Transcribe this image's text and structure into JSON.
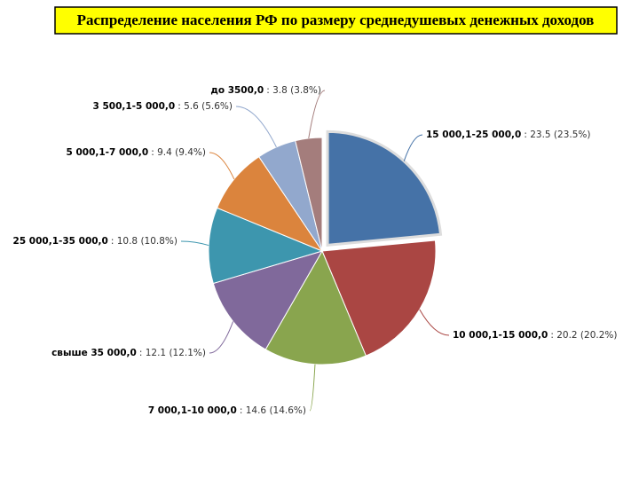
{
  "chart_data": {
    "type": "pie",
    "title": "Распределение населения РФ по размеру среднедушевых денежных доходов",
    "categories": [
      "15 000,1-25 000,0",
      "10 000,1-15 000,0",
      "7 000,1-10 000,0",
      "свыше 35 000,0",
      "25 000,1-35 000,0",
      "5 000,1-7 000,0",
      "3 500,1-5 000,0",
      "до 3500,0"
    ],
    "values": [
      23.5,
      20.2,
      14.6,
      12.1,
      10.8,
      9.4,
      5.6,
      3.8
    ],
    "value_labels": [
      ": 23.5 (23.5%)",
      ": 20.2 (20.2%)",
      ": 14.6 (14.6%)",
      ": 12.1 (12.1%)",
      ": 10.8 (10.8%)",
      ": 9.4 (9.4%)",
      ": 5.6 (5.6%)",
      ": 3.8 (3.8%)"
    ],
    "colors": [
      "#4572a7",
      "#aa4643",
      "#89a54e",
      "#80699b",
      "#3d96ae",
      "#db843d",
      "#92a8cd",
      "#a47d7c"
    ]
  }
}
